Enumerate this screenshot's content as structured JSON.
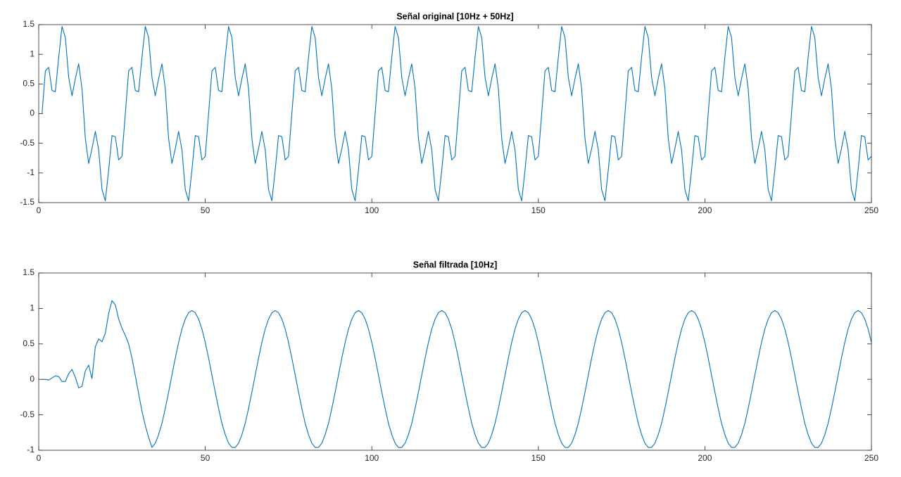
{
  "chart_data": [
    {
      "type": "line",
      "title": "Señal original [10Hz + 50Hz]",
      "xlim": [
        0,
        250
      ],
      "xticks": [
        0,
        50,
        100,
        150,
        200,
        250
      ],
      "ylim": [
        -1.5,
        1.5
      ],
      "yticks": [
        -1.5,
        -1,
        -0.5,
        0,
        0.5,
        1,
        1.5
      ],
      "series": [
        {
          "color": "#0072bd",
          "x": [
            1,
            2,
            3,
            4,
            5,
            6,
            7,
            8,
            9,
            10,
            11,
            12,
            13,
            14,
            15,
            16,
            17,
            18,
            19,
            20,
            21,
            22,
            23,
            24,
            25,
            26,
            27,
            28,
            29,
            30,
            31,
            32,
            33,
            34,
            35,
            36,
            37,
            38,
            39,
            40,
            41,
            42,
            43,
            44,
            45,
            46,
            47,
            48,
            49,
            50,
            51,
            52,
            53,
            54,
            55,
            56,
            57,
            58,
            59,
            60,
            61,
            62,
            63,
            64,
            65,
            66,
            67,
            68,
            69,
            70,
            71,
            72,
            73,
            74,
            75,
            76,
            77,
            78,
            79,
            80,
            81,
            82,
            83,
            84,
            85,
            86,
            87,
            88,
            89,
            90,
            91,
            92,
            93,
            94,
            95,
            96,
            97,
            98,
            99,
            100,
            101,
            102,
            103,
            104,
            105,
            106,
            107,
            108,
            109,
            110,
            111,
            112,
            113,
            114,
            115,
            116,
            117,
            118,
            119,
            120,
            121,
            122,
            123,
            124,
            125,
            126,
            127,
            128,
            129,
            130,
            131,
            132,
            133,
            134,
            135,
            136,
            137,
            138,
            139,
            140,
            141,
            142,
            143,
            144,
            145,
            146,
            147,
            148,
            149,
            150,
            151,
            152,
            153,
            154,
            155,
            156,
            157,
            158,
            159,
            160,
            161,
            162,
            163,
            164,
            165,
            166,
            167,
            168,
            169,
            170,
            171,
            172,
            173,
            174,
            175,
            176,
            177,
            178,
            179,
            180,
            181,
            182,
            183,
            184,
            185,
            186,
            187,
            188,
            189,
            190,
            191,
            192,
            193,
            194,
            195,
            196,
            197,
            198,
            199,
            200,
            201,
            202,
            203,
            204,
            205,
            206,
            207,
            208,
            209,
            210,
            211,
            212,
            213,
            214,
            215,
            216,
            217,
            218,
            219,
            220,
            221,
            222,
            223,
            224,
            225,
            226,
            227,
            228,
            229,
            230,
            231,
            232,
            233,
            234,
            235,
            236,
            237,
            238,
            239,
            240,
            241,
            242,
            243,
            244,
            245,
            246,
            247,
            248,
            249,
            250
          ],
          "values": [
            0,
            0.72,
            0.78,
            0.39,
            0.37,
            0.95,
            1.47,
            1.28,
            0.61,
            0.3,
            0.59,
            0.84,
            0.42,
            -0.42,
            -0.84,
            -0.59,
            -0.3,
            -0.61,
            -1.28,
            -1.47,
            -0.95,
            -0.37,
            -0.39,
            -0.78,
            -0.72,
            0,
            0.72,
            0.78,
            0.39,
            0.37,
            0.95,
            1.47,
            1.28,
            0.61,
            0.3,
            0.59,
            0.84,
            0.42,
            -0.42,
            -0.84,
            -0.59,
            -0.3,
            -0.61,
            -1.28,
            -1.47,
            -0.95,
            -0.37,
            -0.39,
            -0.78,
            -0.72,
            0,
            0.72,
            0.78,
            0.39,
            0.37,
            0.95,
            1.47,
            1.28,
            0.61,
            0.3,
            0.59,
            0.84,
            0.42,
            -0.42,
            -0.84,
            -0.59,
            -0.3,
            -0.61,
            -1.28,
            -1.47,
            -0.95,
            -0.37,
            -0.39,
            -0.78,
            -0.72,
            0,
            0.72,
            0.78,
            0.39,
            0.37,
            0.95,
            1.47,
            1.28,
            0.61,
            0.3,
            0.59,
            0.84,
            0.42,
            -0.42,
            -0.84,
            -0.59,
            -0.3,
            -0.61,
            -1.28,
            -1.47,
            -0.95,
            -0.37,
            -0.39,
            -0.78,
            -0.72,
            0,
            0.72,
            0.78,
            0.39,
            0.37,
            0.95,
            1.47,
            1.28,
            0.61,
            0.3,
            0.59,
            0.84,
            0.42,
            -0.42,
            -0.84,
            -0.59,
            -0.3,
            -0.61,
            -1.28,
            -1.47,
            -0.95,
            -0.37,
            -0.39,
            -0.78,
            -0.72,
            0,
            0.72,
            0.78,
            0.39,
            0.37,
            0.95,
            1.47,
            1.28,
            0.61,
            0.3,
            0.59,
            0.84,
            0.42,
            -0.42,
            -0.84,
            -0.59,
            -0.3,
            -0.61,
            -1.28,
            -1.47,
            -0.95,
            -0.37,
            -0.39,
            -0.78,
            -0.72,
            0,
            0.72,
            0.78,
            0.39,
            0.37,
            0.95,
            1.47,
            1.28,
            0.61,
            0.3,
            0.59,
            0.84,
            0.42,
            -0.42,
            -0.84,
            -0.59,
            -0.3,
            -0.61,
            -1.28,
            -1.47,
            -0.95,
            -0.37,
            -0.39,
            -0.78,
            -0.72,
            0,
            0.72,
            0.78,
            0.39,
            0.37,
            0.95,
            1.47,
            1.28,
            0.61,
            0.3,
            0.59,
            0.84,
            0.42,
            -0.42,
            -0.84,
            -0.59,
            -0.3,
            -0.61,
            -1.28,
            -1.47,
            -0.95,
            -0.37,
            -0.39,
            -0.78,
            -0.72,
            0,
            0.72,
            0.78,
            0.39,
            0.37,
            0.95,
            1.47,
            1.28,
            0.61,
            0.3,
            0.59,
            0.84,
            0.42,
            -0.42,
            -0.84,
            -0.59,
            -0.3,
            -0.61,
            -1.28,
            -1.47,
            -0.95,
            -0.37,
            -0.39,
            -0.78,
            -0.72,
            0,
            0.72,
            0.78,
            0.39,
            0.37,
            0.95,
            1.47,
            1.28,
            0.61,
            0.3,
            0.59,
            0.84,
            0.42,
            -0.42,
            -0.84,
            -0.59,
            -0.3,
            -0.61,
            -1.28,
            -1.47,
            -0.95,
            -0.37,
            -0.39,
            -0.78,
            -0.72
          ]
        }
      ]
    },
    {
      "type": "line",
      "title": "Señal filtrada [10Hz]",
      "xlim": [
        0,
        250
      ],
      "xticks": [
        0,
        50,
        100,
        150,
        200,
        250
      ],
      "ylim": [
        -1,
        1.5
      ],
      "yticks": [
        -1,
        -0.5,
        0,
        0.5,
        1,
        1.5
      ],
      "series": [
        {
          "color": "#0072bd",
          "x": [
            1,
            2,
            3,
            4,
            5,
            6,
            7,
            8,
            9,
            10,
            11,
            12,
            13,
            14,
            15,
            16,
            17,
            18,
            19,
            20,
            21,
            22,
            23,
            24,
            25,
            26,
            27,
            28,
            29,
            30,
            31,
            32,
            33,
            34,
            35,
            36,
            37,
            38,
            39,
            40,
            41,
            42,
            43,
            44,
            45,
            46,
            47,
            48,
            49,
            50,
            51,
            52,
            53,
            54,
            55,
            56,
            57,
            58,
            59,
            60,
            61,
            62,
            63,
            64,
            65,
            66,
            67,
            68,
            69,
            70,
            71,
            72,
            73,
            74,
            75,
            76,
            77,
            78,
            79,
            80,
            81,
            82,
            83,
            84,
            85,
            86,
            87,
            88,
            89,
            90,
            91,
            92,
            93,
            94,
            95,
            96,
            97,
            98,
            99,
            100,
            101,
            102,
            103,
            104,
            105,
            106,
            107,
            108,
            109,
            110,
            111,
            112,
            113,
            114,
            115,
            116,
            117,
            118,
            119,
            120,
            121,
            122,
            123,
            124,
            125,
            126,
            127,
            128,
            129,
            130,
            131,
            132,
            133,
            134,
            135,
            136,
            137,
            138,
            139,
            140,
            141,
            142,
            143,
            144,
            145,
            146,
            147,
            148,
            149,
            150,
            151,
            152,
            153,
            154,
            155,
            156,
            157,
            158,
            159,
            160,
            161,
            162,
            163,
            164,
            165,
            166,
            167,
            168,
            169,
            170,
            171,
            172,
            173,
            174,
            175,
            176,
            177,
            178,
            179,
            180,
            181,
            182,
            183,
            184,
            185,
            186,
            187,
            188,
            189,
            190,
            191,
            192,
            193,
            194,
            195,
            196,
            197,
            198,
            199,
            200,
            201,
            202,
            203,
            204,
            205,
            206,
            207,
            208,
            209,
            210,
            211,
            212,
            213,
            214,
            215,
            216,
            217,
            218,
            219,
            220,
            221,
            222,
            223,
            224,
            225,
            226,
            227,
            228,
            229,
            230,
            231,
            232,
            233,
            234,
            235,
            236,
            237,
            238,
            239,
            240,
            241,
            242,
            243,
            244,
            245,
            246,
            247,
            248,
            249,
            250
          ],
          "values": [
            0,
            0,
            -0.01,
            0.02,
            0.05,
            0.04,
            -0.03,
            -0.03,
            0.08,
            0.14,
            0.03,
            -0.12,
            -0.1,
            0.12,
            0.2,
            0.01,
            0.46,
            0.57,
            0.53,
            0.65,
            0.93,
            1.11,
            1.05,
            0.85,
            0.72,
            0.62,
            0.5,
            0.3,
            0.05,
            -0.2,
            -0.45,
            -0.65,
            -0.82,
            -0.96,
            -0.9,
            -0.78,
            -0.62,
            -0.41,
            -0.18,
            0.06,
            0.3,
            0.52,
            0.71,
            0.85,
            0.94,
            0.97,
            0.94,
            0.85,
            0.71,
            0.52,
            0.3,
            0.06,
            -0.18,
            -0.41,
            -0.62,
            -0.78,
            -0.9,
            -0.96,
            -0.96,
            -0.9,
            -0.78,
            -0.62,
            -0.41,
            -0.18,
            0.06,
            0.3,
            0.52,
            0.71,
            0.85,
            0.94,
            0.97,
            0.94,
            0.85,
            0.71,
            0.52,
            0.3,
            0.06,
            -0.18,
            -0.41,
            -0.62,
            -0.78,
            -0.9,
            -0.96,
            -0.96,
            -0.9,
            -0.78,
            -0.62,
            -0.41,
            -0.18,
            0.06,
            0.3,
            0.52,
            0.71,
            0.85,
            0.94,
            0.97,
            0.94,
            0.85,
            0.71,
            0.52,
            0.3,
            0.06,
            -0.18,
            -0.41,
            -0.62,
            -0.78,
            -0.9,
            -0.96,
            -0.96,
            -0.9,
            -0.78,
            -0.62,
            -0.41,
            -0.18,
            0.06,
            0.3,
            0.52,
            0.71,
            0.85,
            0.94,
            0.97,
            0.94,
            0.85,
            0.71,
            0.52,
            0.3,
            0.06,
            -0.18,
            -0.41,
            -0.62,
            -0.78,
            -0.9,
            -0.96,
            -0.96,
            -0.9,
            -0.78,
            -0.62,
            -0.41,
            -0.18,
            0.06,
            0.3,
            0.52,
            0.71,
            0.85,
            0.94,
            0.97,
            0.94,
            0.85,
            0.71,
            0.52,
            0.3,
            0.06,
            -0.18,
            -0.41,
            -0.62,
            -0.78,
            -0.9,
            -0.96,
            -0.96,
            -0.9,
            -0.78,
            -0.62,
            -0.41,
            -0.18,
            0.06,
            0.3,
            0.52,
            0.71,
            0.85,
            0.94,
            0.97,
            0.94,
            0.85,
            0.71,
            0.52,
            0.3,
            0.06,
            -0.18,
            -0.41,
            -0.62,
            -0.78,
            -0.9,
            -0.96,
            -0.96,
            -0.9,
            -0.78,
            -0.62,
            -0.41,
            -0.18,
            0.06,
            0.3,
            0.52,
            0.71,
            0.85,
            0.94,
            0.97,
            0.94,
            0.85,
            0.71,
            0.52,
            0.3,
            0.06,
            -0.18,
            -0.41,
            -0.62,
            -0.78,
            -0.9,
            -0.96,
            -0.96,
            -0.9,
            -0.78,
            -0.62,
            -0.41,
            -0.18,
            0.06,
            0.3,
            0.52,
            0.71,
            0.85,
            0.94,
            0.97,
            0.94,
            0.85,
            0.71,
            0.52,
            0.3,
            0.06,
            -0.18,
            -0.41,
            -0.62,
            -0.78,
            -0.9,
            -0.96,
            -0.96,
            -0.9,
            -0.78,
            -0.62,
            -0.41,
            -0.18,
            0.06,
            0.3,
            0.52,
            0.71,
            0.85,
            0.94,
            0.97,
            0.94,
            0.85,
            0.71,
            0.52
          ]
        }
      ]
    }
  ]
}
